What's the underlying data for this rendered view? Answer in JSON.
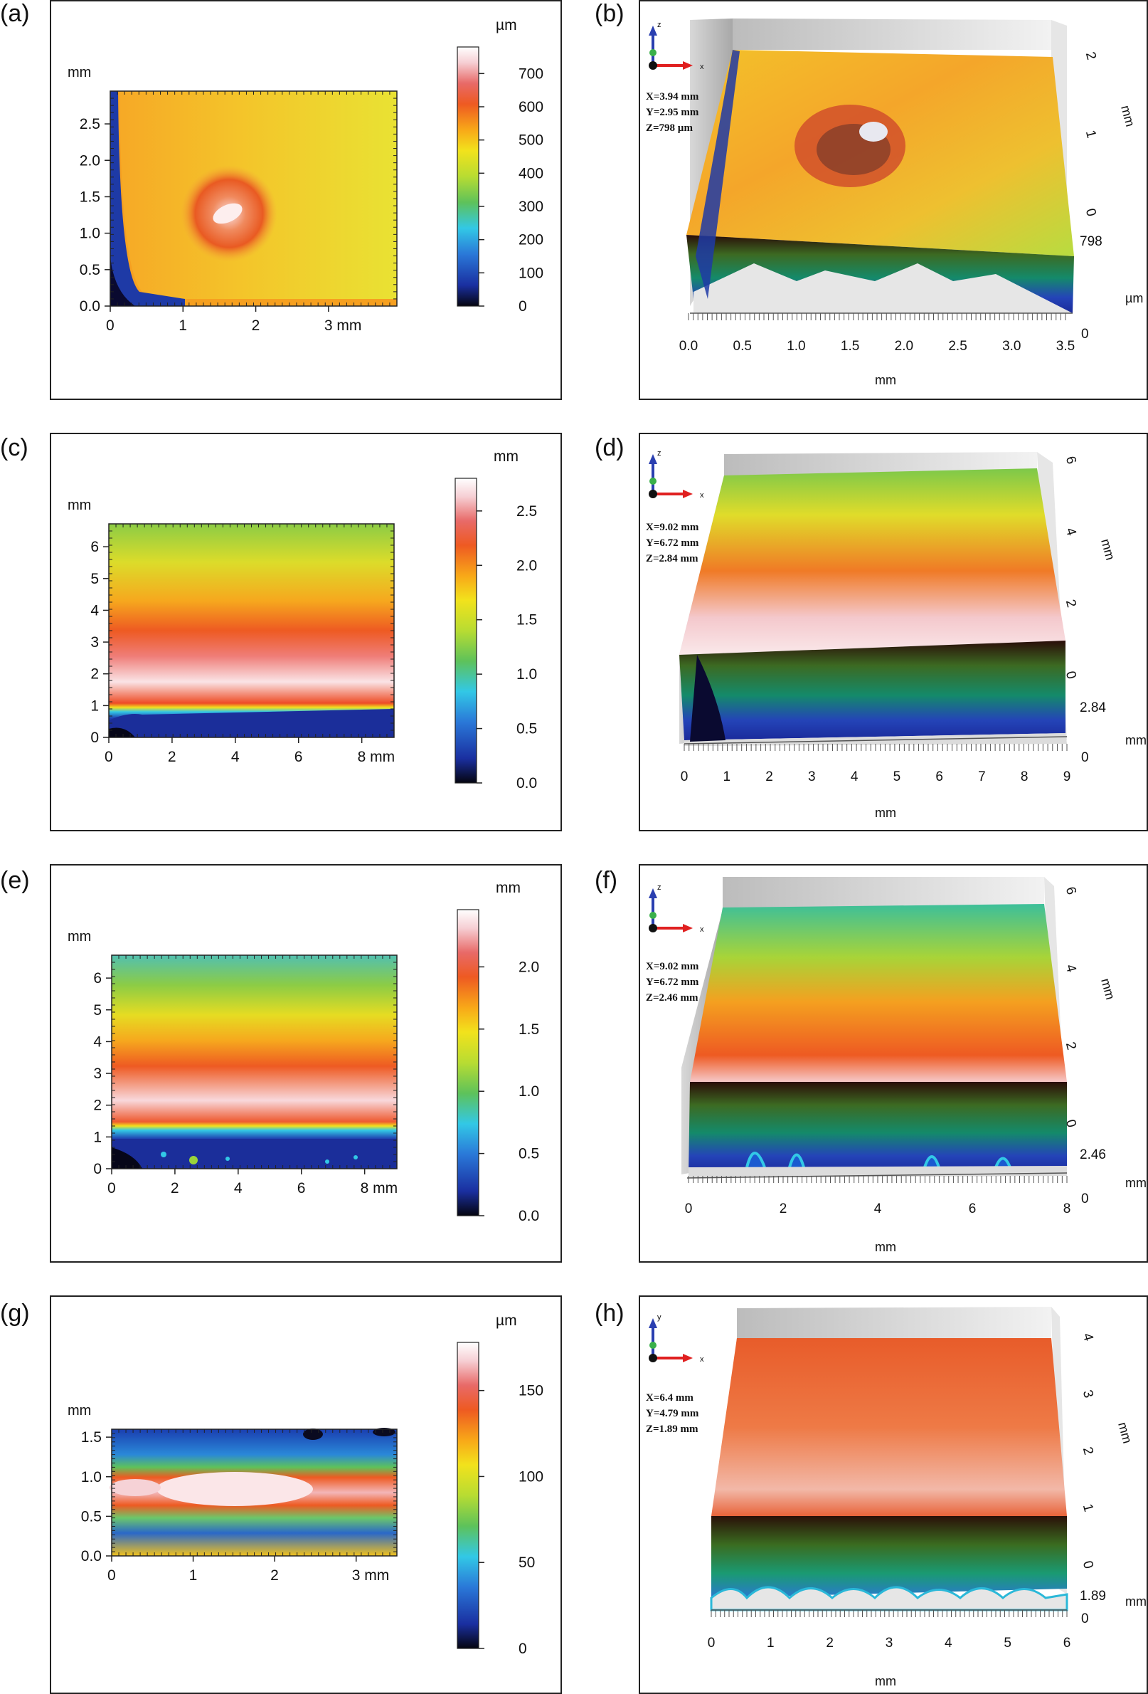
{
  "figure_labels": [
    "(a)",
    "(b)",
    "(c)",
    "(d)",
    "(e)",
    "(f)",
    "(g)",
    "(h)"
  ],
  "colorbar_colors": [
    "#050510",
    "#1a2fa0",
    "#2a78d8",
    "#32c8e6",
    "#5ec25a",
    "#b8dc32",
    "#f2e21c",
    "#f8a818",
    "#ee5a22",
    "#e86a68",
    "#f6cfd4",
    "#ffffff"
  ],
  "chart_data": [
    {
      "id": "a",
      "type": "heatmap",
      "xlabel": "mm",
      "ylabel": "mm",
      "xlim": [
        0,
        3.94
      ],
      "ylim": [
        0,
        2.95
      ],
      "x_ticks": [
        0,
        1,
        2,
        3
      ],
      "x_tick_labels": [
        "0",
        "1",
        "2",
        "3 mm"
      ],
      "y_ticks": [
        0.0,
        0.5,
        1.0,
        1.5,
        2.0,
        2.5
      ],
      "y_tick_labels": [
        "0.0",
        "0.5",
        "1.0",
        "1.5",
        "2.0",
        "2.5"
      ],
      "colorbar": {
        "unit": "µm",
        "range": [
          0,
          780
        ],
        "ticks": [
          0,
          100,
          200,
          300,
          400,
          500,
          600,
          700
        ],
        "tick_labels": [
          "0",
          "100",
          "200",
          "300",
          "400",
          "500",
          "600",
          "700"
        ]
      }
    },
    {
      "id": "b",
      "type": "surface3d",
      "readout": [
        "X=3.94 mm",
        "Y=2.95 mm",
        "Z=798  µm"
      ],
      "axis_glyphs": {
        "x": "x",
        "z": "z"
      },
      "x_ticks": [
        "0.0",
        "0.5",
        "1.0",
        "1.5",
        "2.0",
        "2.5",
        "3.0",
        "3.5"
      ],
      "xlabel": "mm",
      "y_ticks": [
        "0",
        "1",
        "2"
      ],
      "ylabel": "mm",
      "z_labels": [
        "798",
        "µm",
        "0"
      ]
    },
    {
      "id": "c",
      "type": "heatmap",
      "xlabel": "mm",
      "ylabel": "mm",
      "xlim": [
        0,
        9.02
      ],
      "ylim": [
        0,
        6.72
      ],
      "x_ticks": [
        0,
        2,
        4,
        6,
        8
      ],
      "x_tick_labels": [
        "0",
        "2",
        "4",
        "6",
        "8 mm"
      ],
      "y_ticks": [
        0,
        1,
        2,
        3,
        4,
        5,
        6
      ],
      "y_tick_labels": [
        "0",
        "1",
        "2",
        "3",
        "4",
        "5",
        "6"
      ],
      "colorbar": {
        "unit": "mm",
        "range": [
          0,
          2.8
        ],
        "ticks": [
          0.0,
          0.5,
          1.0,
          1.5,
          2.0,
          2.5
        ],
        "tick_labels": [
          "0.0",
          "0.5",
          "1.0",
          "1.5",
          "2.0",
          "2.5"
        ]
      }
    },
    {
      "id": "d",
      "type": "surface3d",
      "readout": [
        "X=9.02 mm",
        "Y=6.72 mm",
        "Z=2.84 mm"
      ],
      "axis_glyphs": {
        "x": "x",
        "z": "z"
      },
      "x_ticks": [
        "0",
        "1",
        "2",
        "3",
        "4",
        "5",
        "6",
        "7",
        "8",
        "9"
      ],
      "xlabel": "mm",
      "y_ticks": [
        "0",
        "2",
        "4",
        "6"
      ],
      "ylabel": "mm",
      "z_labels": [
        "2.84",
        "mm",
        "0"
      ]
    },
    {
      "id": "e",
      "type": "heatmap",
      "xlabel": "mm",
      "ylabel": "mm",
      "xlim": [
        0,
        9.02
      ],
      "ylim": [
        0,
        6.72
      ],
      "x_ticks": [
        0,
        2,
        4,
        6,
        8
      ],
      "x_tick_labels": [
        "0",
        "2",
        "4",
        "6",
        "8 mm"
      ],
      "y_ticks": [
        0,
        1,
        2,
        3,
        4,
        5,
        6
      ],
      "y_tick_labels": [
        "0",
        "1",
        "2",
        "3",
        "4",
        "5",
        "6"
      ],
      "colorbar": {
        "unit": "mm",
        "range": [
          0,
          2.46
        ],
        "ticks": [
          0.0,
          0.5,
          1.0,
          1.5,
          2.0
        ],
        "tick_labels": [
          "0.0",
          "0.5",
          "1.0",
          "1.5",
          "2.0"
        ]
      }
    },
    {
      "id": "f",
      "type": "surface3d",
      "readout": [
        "X=9.02 mm",
        "Y=6.72 mm",
        "Z=2.46 mm"
      ],
      "axis_glyphs": {
        "x": "x",
        "z": "z"
      },
      "x_ticks": [
        "0",
        "2",
        "4",
        "6",
        "8"
      ],
      "xlabel": "mm",
      "y_ticks": [
        "0",
        "2",
        "4",
        "6"
      ],
      "ylabel": "mm",
      "z_labels": [
        "2.46",
        "mm",
        "0"
      ]
    },
    {
      "id": "g",
      "type": "heatmap",
      "xlabel": "mm",
      "ylabel": "mm",
      "xlim": [
        0,
        3.5
      ],
      "ylim": [
        0,
        1.6
      ],
      "x_ticks": [
        0,
        1,
        2,
        3
      ],
      "x_tick_labels": [
        "0",
        "1",
        "2",
        "3 mm"
      ],
      "y_ticks": [
        0.0,
        0.5,
        1.0,
        1.5
      ],
      "y_tick_labels": [
        "0.0",
        "0.5",
        "1.0",
        "1.5"
      ],
      "colorbar": {
        "unit": "µm",
        "range": [
          0,
          178
        ],
        "ticks": [
          0,
          50,
          100,
          150
        ],
        "tick_labels": [
          "0",
          "50",
          "100",
          "150"
        ]
      }
    },
    {
      "id": "h",
      "type": "surface3d",
      "readout": [
        "X=6.4   mm",
        "Y=4.79 mm",
        "Z=1.89 mm"
      ],
      "axis_glyphs": {
        "x": "x",
        "z": "y"
      },
      "x_ticks": [
        "0",
        "1",
        "2",
        "3",
        "4",
        "5",
        "6"
      ],
      "xlabel": "mm",
      "y_ticks": [
        "0",
        "1",
        "2",
        "3",
        "4"
      ],
      "ylabel": "mm",
      "z_labels": [
        "1.89",
        "mm",
        "0"
      ]
    }
  ]
}
